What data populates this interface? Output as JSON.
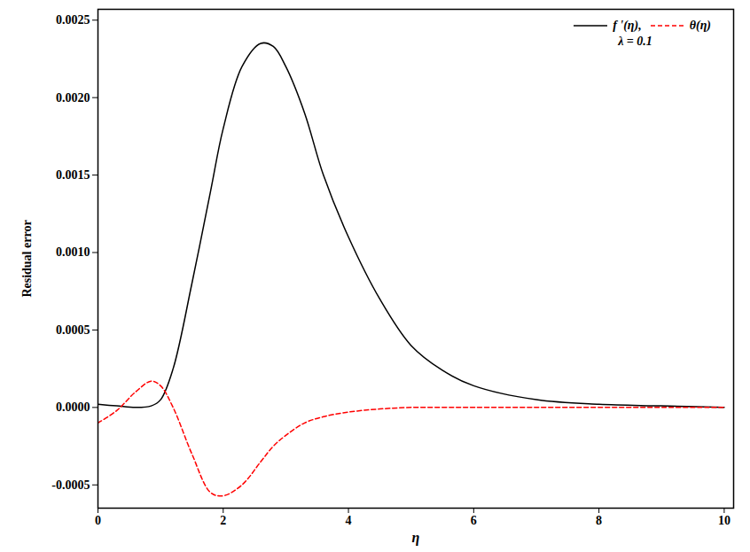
{
  "chart_data": {
    "type": "line",
    "x_label": "η",
    "y_label": "Residual error",
    "annotation": "λ = 0.1",
    "legend": "top-right",
    "grid": false,
    "x": [
      0,
      0.3,
      0.6,
      0.85,
      1.0,
      1.2,
      1.5,
      1.8,
      2.0,
      2.3,
      2.6,
      2.8,
      3.0,
      3.3,
      3.6,
      4.0,
      4.5,
      5.0,
      5.5,
      6.0,
      7.0,
      8.0,
      9.0,
      10.0
    ],
    "series": [
      {
        "name": "f '(η),",
        "color": "#000000",
        "line_style": "solid",
        "values": [
          2e-05,
          1e-05,
          0.0,
          1e-05,
          5e-05,
          0.00025,
          0.0008,
          0.0014,
          0.0018,
          0.0022,
          0.00235,
          0.00233,
          0.0022,
          0.0019,
          0.0015,
          0.0011,
          0.0007,
          0.0004,
          0.00024,
          0.00014,
          5e-05,
          2e-05,
          1e-05,
          0.0
        ]
      },
      {
        "name": "θ(η)",
        "color": "#ff0000",
        "line_style": "dashed",
        "values": [
          -0.0001,
          -2e-05,
          0.0001,
          0.00017,
          0.00014,
          0.0,
          -0.0003,
          -0.00055,
          -0.00057,
          -0.0005,
          -0.00035,
          -0.00025,
          -0.00018,
          -0.0001,
          -6e-05,
          -3e-05,
          -1e-05,
          0.0,
          0.0,
          0.0,
          0.0,
          0.0,
          0.0,
          0.0
        ]
      }
    ],
    "xlim": [
      0,
      10.15
    ],
    "ylim": [
      -0.00065,
      0.00257
    ],
    "xticks": [
      0,
      2,
      4,
      6,
      8,
      10
    ],
    "yticks": [
      {
        "value": -0.0005,
        "label": "-0.0005"
      },
      {
        "value": 0,
        "label": "0.0000"
      },
      {
        "value": 0.0005,
        "label": "0.0005"
      },
      {
        "value": 0.001,
        "label": "0.0010"
      },
      {
        "value": 0.0015,
        "label": "0.0015"
      },
      {
        "value": 0.002,
        "label": "0.0020"
      },
      {
        "value": 0.0025,
        "label": "0.0025"
      }
    ]
  }
}
